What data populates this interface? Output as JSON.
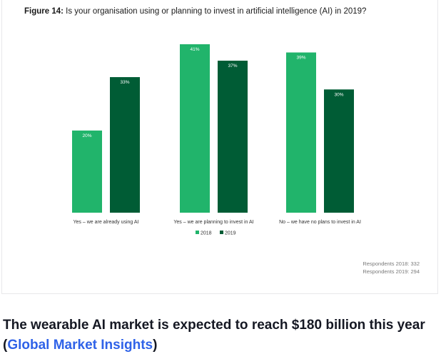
{
  "figure": {
    "label": "Figure 14:",
    "title": "Is your organisation using or planning to invest in artificial intelligence (AI) in 2019?"
  },
  "chart_data": {
    "type": "bar",
    "title": "Is your organisation using or planning to invest in artificial intelligence (AI) in 2019?",
    "categories": [
      "Yes – we are already using AI",
      "Yes – we are planning to invest in AI",
      "No – we have no plans to invest in AI"
    ],
    "series": [
      {
        "name": "2018",
        "values": [
          20,
          41,
          39
        ],
        "color": "#21b46b"
      },
      {
        "name": "2019",
        "values": [
          33,
          37,
          30
        ],
        "color": "#005c35"
      }
    ],
    "unit": "%",
    "ylim": [
      0,
      41
    ],
    "grid": false,
    "legend_position": "bottom-center"
  },
  "respondents": {
    "line1": "Respondents 2018: 332",
    "line2": "Respondents 2019: 294"
  },
  "headline": {
    "text_before": "The wearable AI market is expected to reach $180 billion this year (",
    "link_text": "Global Market Insights",
    "text_after": ")"
  },
  "colors": {
    "bar_2018": "#21b46b",
    "bar_2019": "#005c35",
    "link": "#2f62e8"
  }
}
